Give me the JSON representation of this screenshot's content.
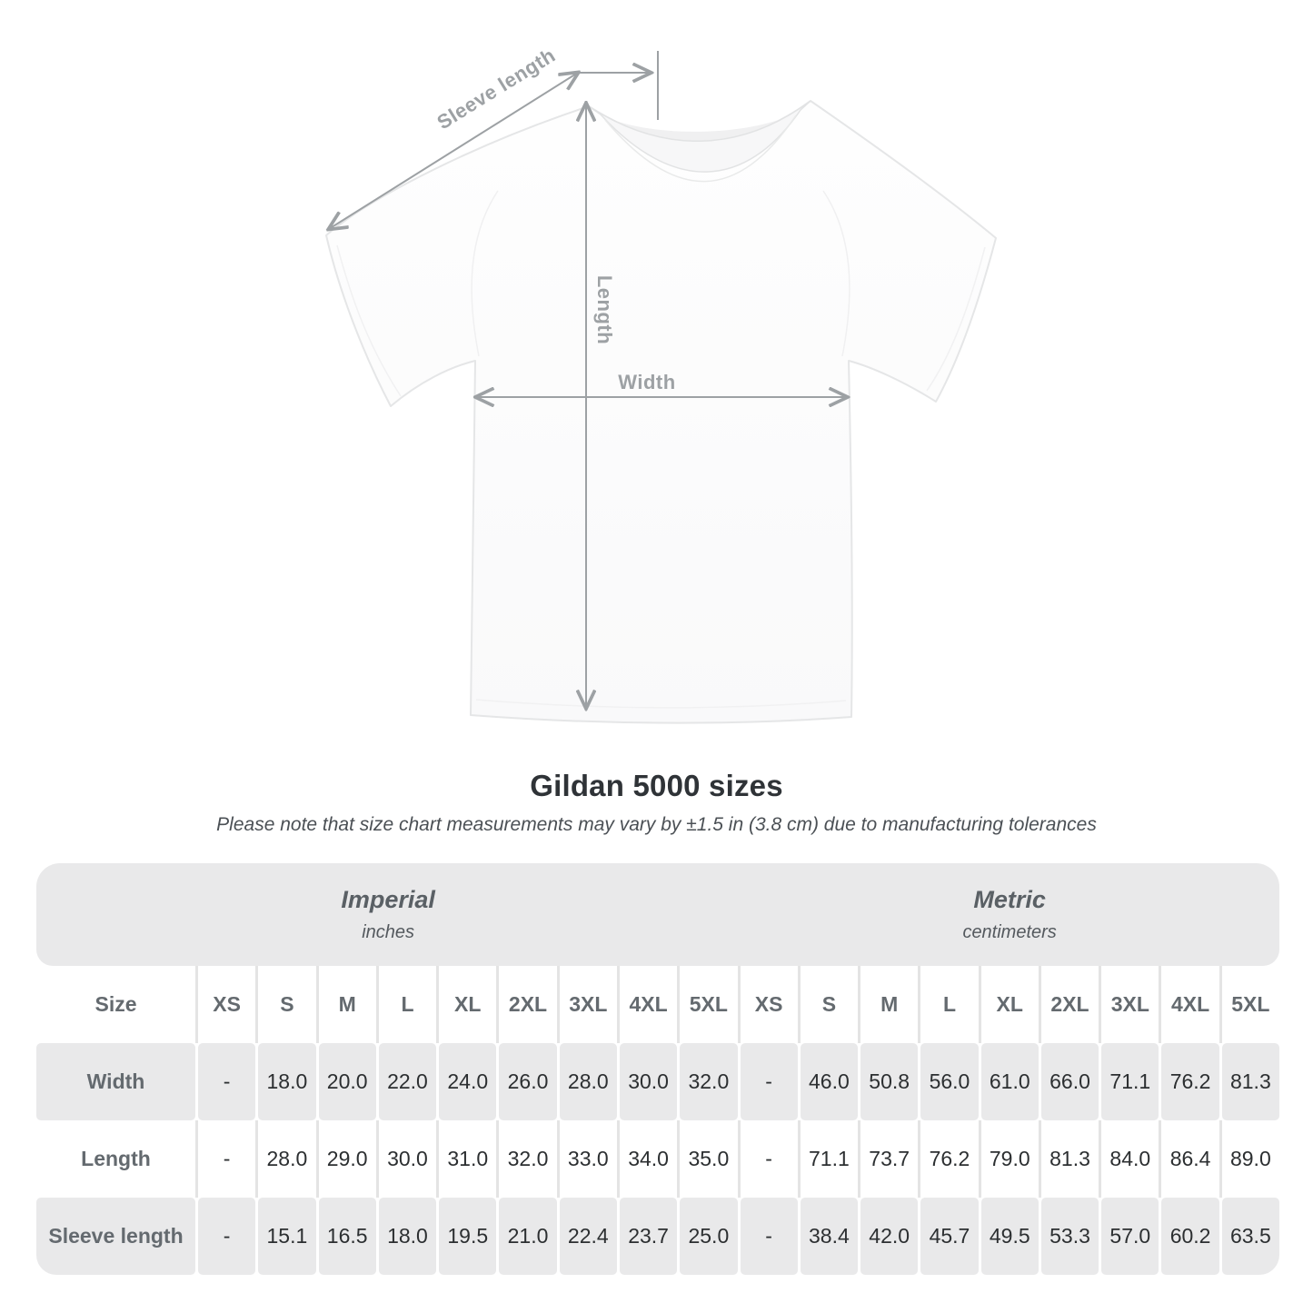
{
  "diagram": {
    "sleeve_length_label": "Sleeve length",
    "length_label": "Length",
    "width_label": "Width"
  },
  "heading": {
    "title": "Gildan 5000 sizes",
    "subtitle": "Please note that size chart measurements may vary by ±1.5 in (3.8 cm) due to manufacturing tolerances"
  },
  "table": {
    "groups": [
      {
        "label": "Imperial",
        "unit": "inches"
      },
      {
        "label": "Metric",
        "unit": "centimeters"
      }
    ],
    "size_header": "Size",
    "sizes": [
      "XS",
      "S",
      "M",
      "L",
      "XL",
      "2XL",
      "3XL",
      "4XL",
      "5XL"
    ],
    "rows": [
      {
        "label": "Width",
        "imperial": [
          "-",
          "18.0",
          "20.0",
          "22.0",
          "24.0",
          "26.0",
          "28.0",
          "30.0",
          "32.0"
        ],
        "metric": [
          "-",
          "46.0",
          "50.8",
          "56.0",
          "61.0",
          "66.0",
          "71.1",
          "76.2",
          "81.3"
        ]
      },
      {
        "label": "Length",
        "imperial": [
          "-",
          "28.0",
          "29.0",
          "30.0",
          "31.0",
          "32.0",
          "33.0",
          "34.0",
          "35.0"
        ],
        "metric": [
          "-",
          "71.1",
          "73.7",
          "76.2",
          "79.0",
          "81.3",
          "84.0",
          "86.4",
          "89.0"
        ]
      },
      {
        "label": "Sleeve length",
        "imperial": [
          "-",
          "15.1",
          "16.5",
          "18.0",
          "19.5",
          "21.0",
          "22.4",
          "23.7",
          "25.0"
        ],
        "metric": [
          "-",
          "38.4",
          "42.0",
          "45.7",
          "49.5",
          "53.3",
          "57.0",
          "60.2",
          "63.5"
        ]
      }
    ]
  },
  "colors": {
    "table_gray": "#e9e9ea",
    "row_separator": "#e4e4e4",
    "header_text": "#646a6f",
    "number_text": "#2c2f31",
    "arrow_gray": "#9da1a4",
    "title_text": "#2f3337"
  }
}
